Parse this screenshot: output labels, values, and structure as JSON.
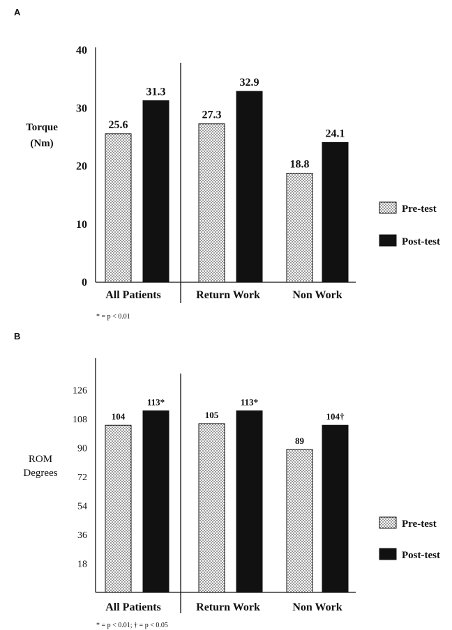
{
  "colors": {
    "pre": "#d4d4d4",
    "post": "#111111",
    "axis": "#111111"
  },
  "legend": {
    "pre_label": "Pre-test",
    "post_label": "Post-test",
    "placement": "right"
  },
  "chart_data": [
    {
      "panel": "A",
      "type": "bar",
      "ylabel": [
        "Torque",
        "(Nm)"
      ],
      "ylim": [
        0,
        40
      ],
      "yticks": [
        "0",
        "10",
        "20",
        "30",
        "40"
      ],
      "categories": [
        "All Patients",
        "Return Work",
        "Non Work"
      ],
      "series": [
        {
          "name": "Pre-test",
          "values": [
            25.6,
            27.3,
            18.8
          ],
          "labels": [
            "25.6",
            "27.3",
            "18.8"
          ]
        },
        {
          "name": "Post-test",
          "values": [
            31.3,
            32.9,
            24.1
          ],
          "labels": [
            "31.3",
            "32.9",
            "24.1"
          ]
        }
      ],
      "note": "* = p < 0.01"
    },
    {
      "panel": "B",
      "type": "bar",
      "ylabel": [
        "ROM",
        "Degrees"
      ],
      "ylim": [
        0,
        144
      ],
      "yticks": [
        "18",
        "36",
        "54",
        "72",
        "90",
        "108",
        "126"
      ],
      "categories": [
        "All Patients",
        "Return Work",
        "Non Work"
      ],
      "series": [
        {
          "name": "Pre-test",
          "values": [
            104,
            105,
            89
          ],
          "labels": [
            "104",
            "105",
            "89"
          ]
        },
        {
          "name": "Post-test",
          "values": [
            113,
            113,
            104
          ],
          "labels": [
            "113*",
            "113*",
            "104†"
          ]
        }
      ],
      "note": "* = p < 0.01;  † = p < 0.05"
    }
  ]
}
